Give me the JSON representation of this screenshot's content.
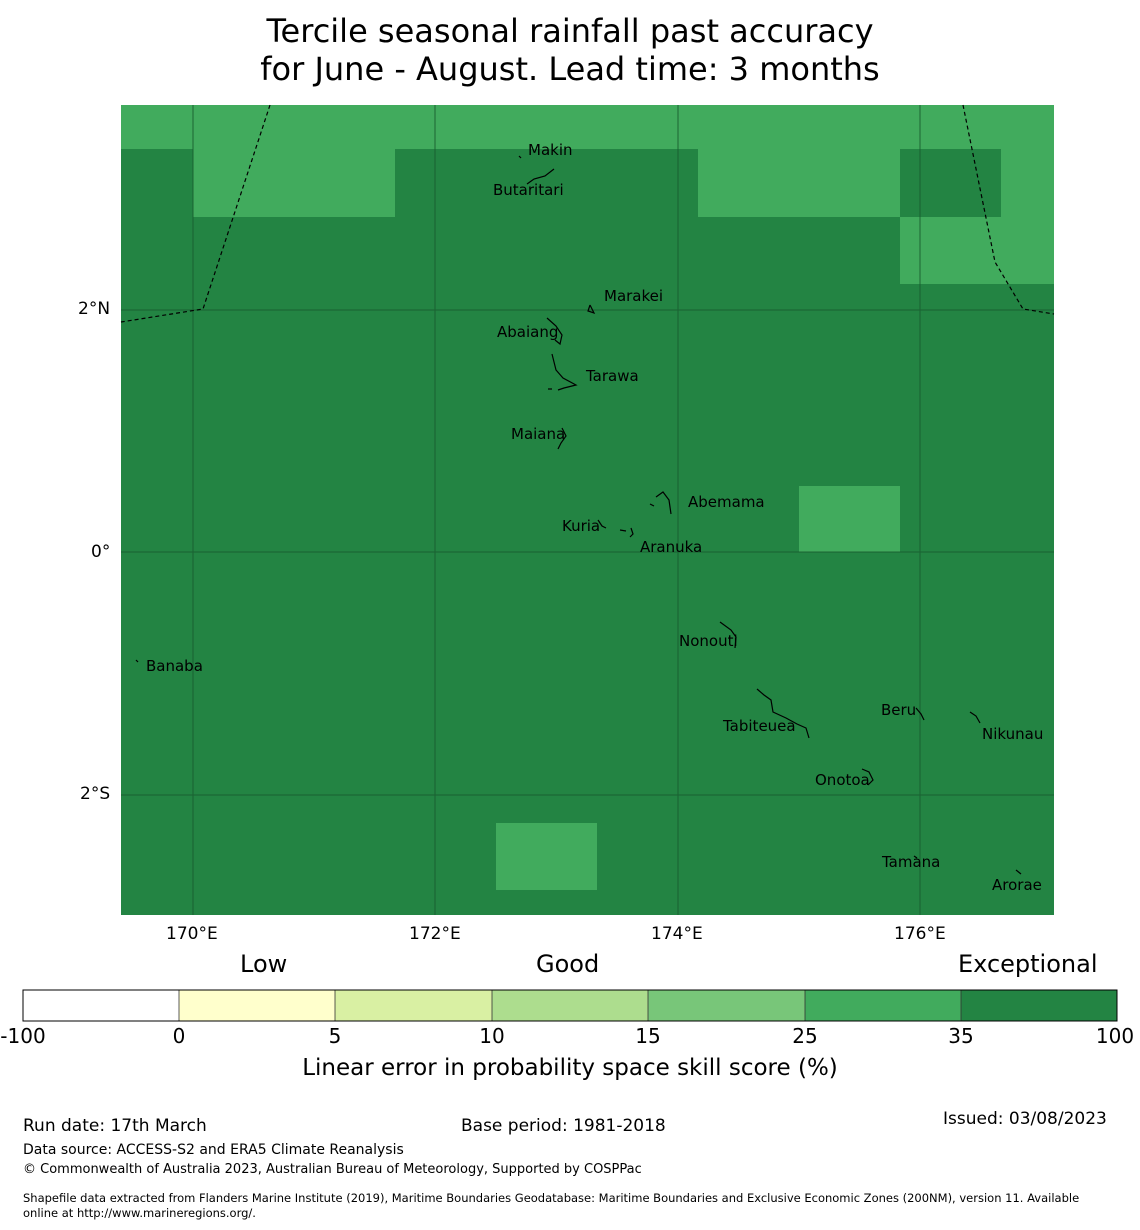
{
  "title": {
    "line1": "Tercile seasonal rainfall past accuracy",
    "line2": "for June - August. Lead time: 3 months"
  },
  "map": {
    "base_color": "#238443",
    "lighter_color": "#41ab5d",
    "lat_ticks": [
      "2°N",
      "0°",
      "2°S"
    ],
    "lon_ticks": [
      "170°E",
      "172°E",
      "174°E",
      "176°E"
    ],
    "places": [
      "Makin",
      "Butaritari",
      "Marakei",
      "Abaiang",
      "Tarawa",
      "Maiana",
      "Abemama",
      "Kuria",
      "Aranuka",
      "Nonouti",
      "Banaba",
      "Beru",
      "Nikunau",
      "Tabiteuea",
      "Onotoa",
      "Tamana",
      "Arorae"
    ]
  },
  "legend": {
    "header_low": "Low",
    "header_good": "Good",
    "header_exceptional": "Exceptional",
    "bins": [
      {
        "from": "-100",
        "to": "0",
        "color": "#ffffff"
      },
      {
        "from": "0",
        "to": "5",
        "color": "#ffffcc"
      },
      {
        "from": "5",
        "to": "10",
        "color": "#d9f0a3"
      },
      {
        "from": "10",
        "to": "15",
        "color": "#addd8e"
      },
      {
        "from": "15",
        "to": "25",
        "color": "#78c679"
      },
      {
        "from": "25",
        "to": "35",
        "color": "#41ab5d"
      },
      {
        "from": "35",
        "to": "100",
        "color": "#238443"
      }
    ],
    "ticks": [
      "-100",
      "0",
      "5",
      "10",
      "15",
      "25",
      "35",
      "100"
    ],
    "title": "Linear error in probability space skill score (%)"
  },
  "footer": {
    "run_date": "Run date: 17th March",
    "base_period": "Base period: 1981-2018",
    "issued": "Issued: 03/08/2023",
    "data_source": "Data source: ACCESS-S2 and ERA5 Climate Reanalysis",
    "copyright": "© Commonwealth of Australia 2023, Australian Bureau of Meteorology, Supported by COSPPac",
    "shapefile_line1": "Shapefile data extracted from Flanders Marine Institute (2019), Maritime Boundaries Geodatabase: Maritime Boundaries and Exclusive Economic Zones (200NM), version 11. Available",
    "shapefile_line2": "online at http://www.marineregions.org/."
  }
}
